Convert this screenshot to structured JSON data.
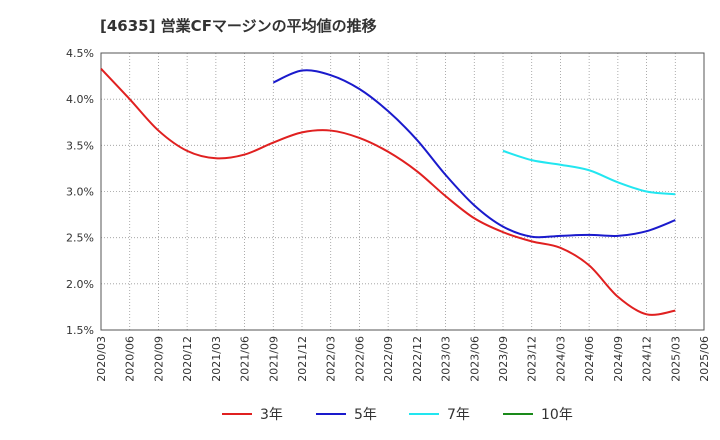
{
  "chart_data": {
    "type": "line",
    "title": "[4635]  営業CFマージンの平均値の推移",
    "xlabel": "",
    "ylabel": "",
    "x": [
      "2020/03",
      "2020/06",
      "2020/09",
      "2020/12",
      "2021/03",
      "2021/06",
      "2021/09",
      "2021/12",
      "2022/03",
      "2022/06",
      "2022/09",
      "2022/12",
      "2023/03",
      "2023/06",
      "2023/09",
      "2023/12",
      "2024/03",
      "2024/06",
      "2024/09",
      "2024/12",
      "2025/03",
      "2025/06"
    ],
    "ylim": [
      1.5,
      4.5
    ],
    "yticks": [
      "1.5%",
      "2.0%",
      "2.5%",
      "3.0%",
      "3.5%",
      "4.0%",
      "4.5%"
    ],
    "ytick_values": [
      1.5,
      2.0,
      2.5,
      3.0,
      3.5,
      4.0,
      4.5
    ],
    "grid": true,
    "legend_position": "bottom",
    "series": [
      {
        "name": "3年",
        "color": "#e02020",
        "values": [
          4.33,
          4.0,
          3.66,
          3.44,
          3.36,
          3.4,
          3.53,
          3.64,
          3.66,
          3.58,
          3.43,
          3.22,
          2.95,
          2.71,
          2.56,
          2.46,
          2.39,
          2.2,
          1.86,
          1.67,
          1.71,
          null
        ]
      },
      {
        "name": "5年",
        "color": "#1a1acc",
        "values": [
          null,
          null,
          null,
          null,
          null,
          null,
          4.18,
          4.31,
          4.26,
          4.11,
          3.87,
          3.56,
          3.18,
          2.85,
          2.62,
          2.51,
          2.52,
          2.53,
          2.52,
          2.57,
          2.69,
          null
        ]
      },
      {
        "name": "7年",
        "color": "#22e6f0",
        "values": [
          null,
          null,
          null,
          null,
          null,
          null,
          null,
          null,
          null,
          null,
          null,
          null,
          null,
          null,
          3.44,
          3.34,
          3.29,
          3.23,
          3.1,
          3.0,
          2.97,
          null
        ]
      },
      {
        "name": "10年",
        "color": "#1a8a1a",
        "values": [
          null,
          null,
          null,
          null,
          null,
          null,
          null,
          null,
          null,
          null,
          null,
          null,
          null,
          null,
          null,
          null,
          null,
          null,
          null,
          null,
          null,
          null
        ]
      }
    ]
  }
}
